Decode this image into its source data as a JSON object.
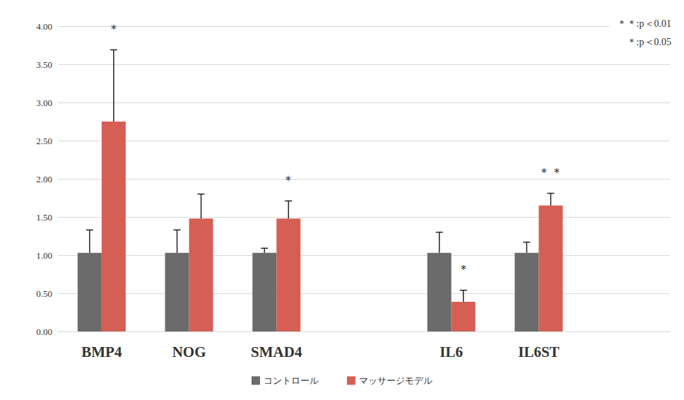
{
  "chart_data": {
    "type": "bar",
    "categories": [
      "BMP4",
      "NOG",
      "SMAD4",
      null,
      "IL6",
      "IL6ST",
      null
    ],
    "series": [
      {
        "name": "コントロール",
        "color": "#6b6b6b",
        "values": [
          1.03,
          1.03,
          1.03,
          null,
          1.03,
          1.03,
          null
        ],
        "errors": [
          0.3,
          0.3,
          0.06,
          null,
          0.27,
          0.14,
          null
        ]
      },
      {
        "name": "マッサージモデル",
        "color": "#d65f55",
        "values": [
          2.75,
          1.48,
          1.48,
          null,
          0.39,
          1.65,
          null
        ],
        "errors": [
          0.94,
          0.32,
          0.23,
          null,
          0.15,
          0.16,
          null
        ],
        "significance": [
          "＊",
          null,
          "＊",
          null,
          "＊",
          "＊＊",
          null
        ]
      }
    ],
    "annotations": [
      "＊＊:p＜0.01",
      "＊:p＜0.05"
    ],
    "ylim": [
      0,
      4
    ],
    "yticks": [
      {
        "value": 0,
        "label": "0.00"
      },
      {
        "value": 0.5,
        "label": "0.50"
      },
      {
        "value": 1,
        "label": "1.00"
      },
      {
        "value": 1.5,
        "label": "1.50"
      },
      {
        "value": 2,
        "label": "2.00"
      },
      {
        "value": 2.5,
        "label": "2.50"
      },
      {
        "value": 3,
        "label": "3.00"
      },
      {
        "value": 3.5,
        "label": "3.50"
      },
      {
        "value": 4,
        "label": "4.00"
      }
    ],
    "grid": true,
    "legend": "bottom"
  }
}
